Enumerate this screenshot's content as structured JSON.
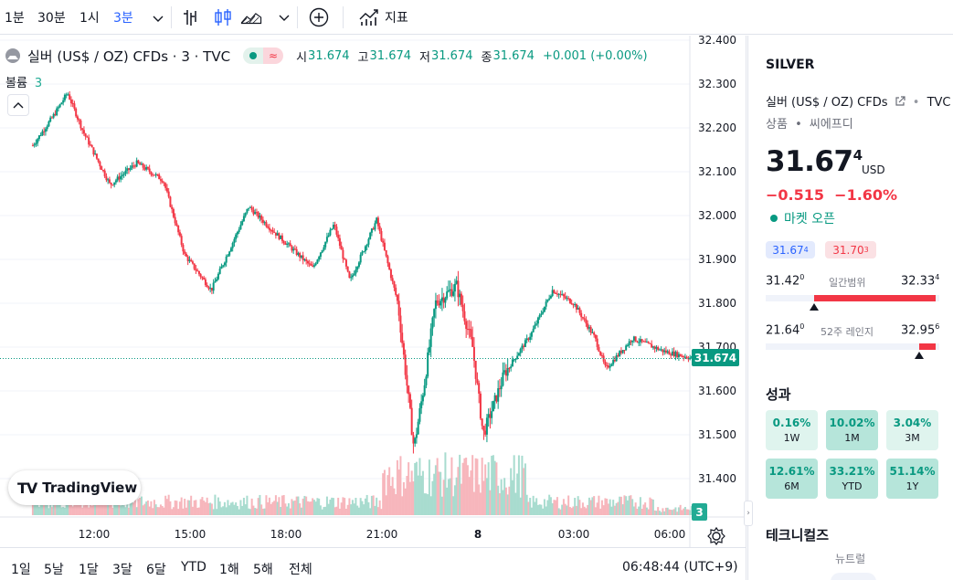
{
  "toolbar": {
    "intervals": [
      "1분",
      "30분",
      "1시",
      "3분"
    ],
    "active_interval": "3분",
    "indicators_label": "지표"
  },
  "legend": {
    "title": "실버 (US$ / OZ) CFDs · 3 · TVC",
    "status_icon": "≈",
    "open_label": "시",
    "open": "31.674",
    "high_label": "고",
    "high": "31.674",
    "low_label": "저",
    "low": "31.674",
    "close_label": "종",
    "close": "31.674",
    "change": "+0.001 (+0.00%)",
    "volume_label": "볼륨",
    "volume_value": "3"
  },
  "logo_text": "TradingView",
  "chart": {
    "current_price_badge": "31.674",
    "volume_badge": "3",
    "up_color": "#089981",
    "down_color": "#f23645"
  },
  "chart_data": {
    "type": "candlestick",
    "title": "실버 (US$ / OZ) CFDs · 3 · TVC",
    "ylim": [
      31.3,
      32.4
    ],
    "y_ticks": [
      "32.400",
      "32.300",
      "32.200",
      "32.100",
      "32.000",
      "31.900",
      "31.800",
      "31.700",
      "31.600",
      "31.500",
      "31.400"
    ],
    "x_ticks": [
      "12:00",
      "15:00",
      "18:00",
      "21:00",
      "8",
      "03:00",
      "06:00"
    ],
    "current_price": 31.674,
    "price_path_anchors": [
      {
        "t": "10:05",
        "price": 32.16
      },
      {
        "t": "10:45",
        "price": 32.23
      },
      {
        "t": "11:10",
        "price": 32.28
      },
      {
        "t": "11:40",
        "price": 32.19
      },
      {
        "t": "12:30",
        "price": 32.07
      },
      {
        "t": "13:20",
        "price": 32.12
      },
      {
        "t": "14:10",
        "price": 32.08
      },
      {
        "t": "14:50",
        "price": 31.91
      },
      {
        "t": "15:40",
        "price": 31.83
      },
      {
        "t": "16:50",
        "price": 32.02
      },
      {
        "t": "17:40",
        "price": 31.96
      },
      {
        "t": "18:50",
        "price": 31.88
      },
      {
        "t": "19:30",
        "price": 31.98
      },
      {
        "t": "20:00",
        "price": 31.85
      },
      {
        "t": "20:50",
        "price": 31.99
      },
      {
        "t": "21:30",
        "price": 31.8
      },
      {
        "t": "22:00",
        "price": 31.47
      },
      {
        "t": "22:20",
        "price": 31.62
      },
      {
        "t": "22:40",
        "price": 31.8
      },
      {
        "t": "23:20",
        "price": 31.84
      },
      {
        "t": "23:50",
        "price": 31.7
      },
      {
        "t": "00:10",
        "price": 31.5
      },
      {
        "t": "00:50",
        "price": 31.64
      },
      {
        "t": "01:40",
        "price": 31.73
      },
      {
        "t": "02:20",
        "price": 31.83
      },
      {
        "t": "03:00",
        "price": 31.8
      },
      {
        "t": "03:40",
        "price": 31.72
      },
      {
        "t": "04:00",
        "price": 31.65
      },
      {
        "t": "04:50",
        "price": 31.72
      },
      {
        "t": "05:50",
        "price": 31.69
      },
      {
        "t": "06:45",
        "price": 31.674
      }
    ]
  },
  "bottom": {
    "ranges": [
      "1일",
      "5날",
      "1달",
      "3달",
      "6달",
      "YTD",
      "1해",
      "5해",
      "전체"
    ],
    "clock": "06:48:44 (UTC+9)"
  },
  "sidebar": {
    "ticker": "SILVER",
    "name": "실버 (US$ / OZ) CFDs",
    "exchange": "TVC",
    "type_a": "상품",
    "type_b": "씨에프디",
    "price_main": "31.67",
    "price_sup": "4",
    "currency": "USD",
    "change_abs": "−0.515",
    "change_pct": "−1.60%",
    "market_status": "마켓 오픈",
    "bid_main": "31.67",
    "bid_sup": "4",
    "ask_main": "31.70",
    "ask_sup": "3",
    "day_low_main": "31.42",
    "day_low_sup": "0",
    "day_high_main": "32.33",
    "day_high_sup": "4",
    "day_range_label": "일간범위",
    "week52_low_main": "21.64",
    "week52_low_sup": "0",
    "week52_high_main": "32.95",
    "week52_high_sup": "6",
    "week52_label": "52주 레인지",
    "day_range": {
      "low": 31.42,
      "high": 32.334,
      "current": 31.674
    },
    "week52_range": {
      "low": 21.64,
      "high": 32.956,
      "current": 31.674
    },
    "performance_title": "성과",
    "performance": [
      {
        "value": "0.16%",
        "label": "1W"
      },
      {
        "value": "10.02%",
        "label": "1M"
      },
      {
        "value": "3.04%",
        "label": "3M"
      },
      {
        "value": "12.61%",
        "label": "6M"
      },
      {
        "value": "33.21%",
        "label": "YTD"
      },
      {
        "value": "51.14%",
        "label": "1Y"
      }
    ],
    "technicals_title": "테크니컬즈",
    "technicals_value": "뉴트럴"
  }
}
